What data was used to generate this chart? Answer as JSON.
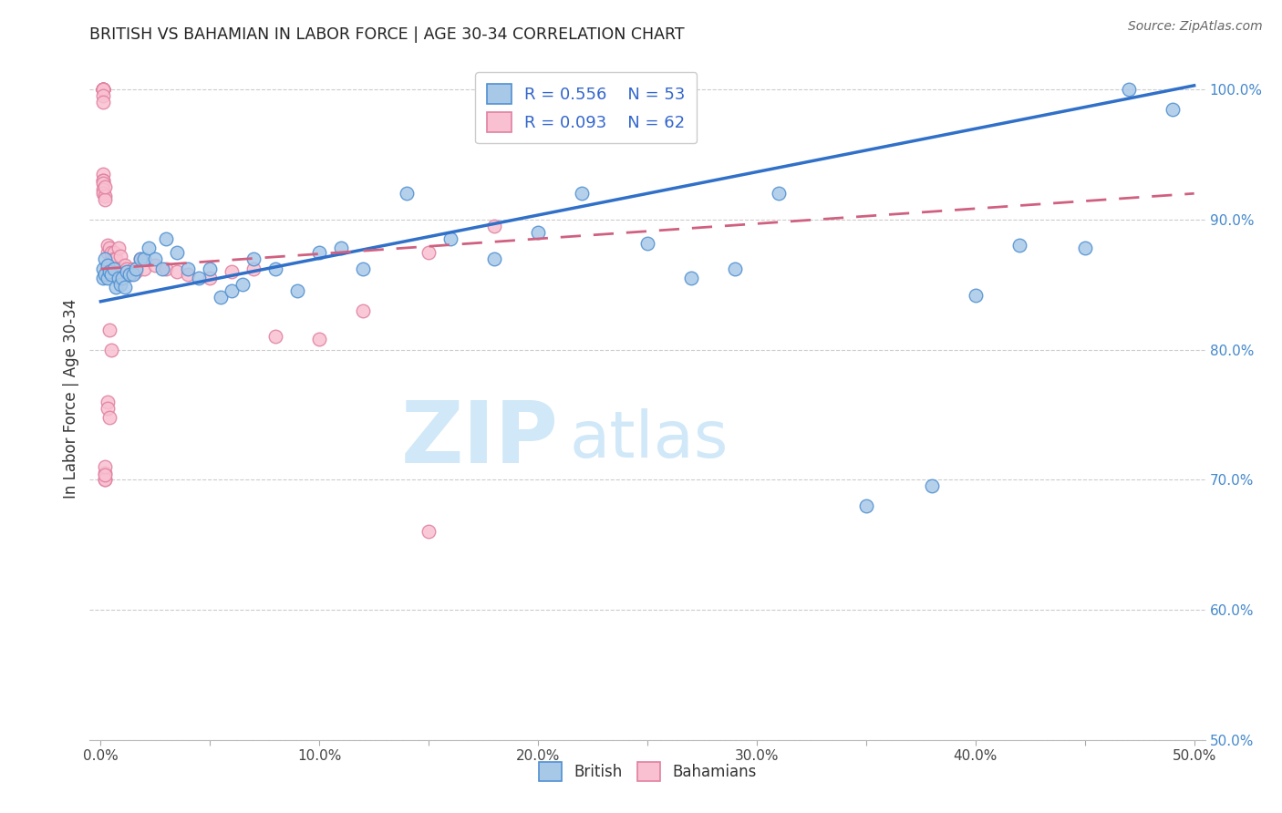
{
  "title": "BRITISH VS BAHAMIAN IN LABOR FORCE | AGE 30-34 CORRELATION CHART",
  "source": "Source: ZipAtlas.com",
  "ylabel": "In Labor Force | Age 30-34",
  "xlim": [
    -0.005,
    0.505
  ],
  "ylim": [
    0.5,
    1.025
  ],
  "xticks": [
    0.0,
    0.05,
    0.1,
    0.15,
    0.2,
    0.25,
    0.3,
    0.35,
    0.4,
    0.45,
    0.5
  ],
  "xticklabels": [
    "0.0%",
    "",
    "10.0%",
    "",
    "20.0%",
    "",
    "30.0%",
    "",
    "40.0%",
    "",
    "50.0%"
  ],
  "yticks": [
    0.5,
    0.6,
    0.7,
    0.8,
    0.9,
    1.0
  ],
  "yticklabels": [
    "50.0%",
    "60.0%",
    "70.0%",
    "80.0%",
    "90.0%",
    "100.0%"
  ],
  "british_R": 0.556,
  "british_N": 53,
  "bahamian_R": 0.093,
  "bahamian_N": 62,
  "british_color": "#a8c8e8",
  "british_edge_color": "#5090d0",
  "british_line_color": "#3070c8",
  "bahamian_color": "#f8c0d0",
  "bahamian_edge_color": "#e080a0",
  "bahamian_line_color": "#d06080",
  "watermark_zip": "ZIP",
  "watermark_atlas": "atlas",
  "watermark_color": "#d0e8f8",
  "british_x": [
    0.001,
    0.001,
    0.002,
    0.002,
    0.003,
    0.003,
    0.004,
    0.005,
    0.006,
    0.007,
    0.008,
    0.009,
    0.01,
    0.011,
    0.012,
    0.013,
    0.015,
    0.016,
    0.018,
    0.02,
    0.022,
    0.025,
    0.028,
    0.03,
    0.035,
    0.04,
    0.045,
    0.05,
    0.055,
    0.06,
    0.065,
    0.07,
    0.08,
    0.09,
    0.1,
    0.11,
    0.12,
    0.14,
    0.16,
    0.18,
    0.2,
    0.22,
    0.25,
    0.27,
    0.29,
    0.31,
    0.35,
    0.38,
    0.4,
    0.42,
    0.45,
    0.47,
    0.49
  ],
  "british_y": [
    0.855,
    0.862,
    0.87,
    0.858,
    0.865,
    0.855,
    0.86,
    0.858,
    0.862,
    0.848,
    0.855,
    0.85,
    0.855,
    0.848,
    0.86,
    0.858,
    0.858,
    0.862,
    0.87,
    0.87,
    0.878,
    0.87,
    0.862,
    0.885,
    0.875,
    0.862,
    0.855,
    0.862,
    0.84,
    0.845,
    0.85,
    0.87,
    0.862,
    0.845,
    0.875,
    0.878,
    0.862,
    0.92,
    0.885,
    0.87,
    0.89,
    0.92,
    0.882,
    0.855,
    0.862,
    0.92,
    0.68,
    0.695,
    0.842,
    0.88,
    0.878,
    1.0,
    0.985
  ],
  "british_trendline_x": [
    0.0,
    0.5
  ],
  "british_trendline_y": [
    0.837,
    1.003
  ],
  "bahamian_x": [
    0.001,
    0.001,
    0.001,
    0.001,
    0.001,
    0.001,
    0.001,
    0.001,
    0.001,
    0.001,
    0.001,
    0.001,
    0.001,
    0.001,
    0.001,
    0.002,
    0.002,
    0.002,
    0.003,
    0.003,
    0.003,
    0.004,
    0.004,
    0.005,
    0.005,
    0.006,
    0.006,
    0.007,
    0.007,
    0.008,
    0.009,
    0.01,
    0.011,
    0.012,
    0.013,
    0.015,
    0.016,
    0.018,
    0.02,
    0.025,
    0.03,
    0.035,
    0.04,
    0.05,
    0.06,
    0.07,
    0.08,
    0.1,
    0.12,
    0.15,
    0.18,
    0.002,
    0.002,
    0.002,
    0.002,
    0.002,
    0.003,
    0.003,
    0.004,
    0.004,
    0.005,
    0.15
  ],
  "bahamian_y": [
    1.0,
    1.0,
    1.0,
    1.0,
    1.0,
    1.0,
    1.0,
    0.995,
    0.99,
    0.935,
    0.93,
    0.93,
    0.928,
    0.923,
    0.92,
    0.918,
    0.915,
    0.925,
    0.875,
    0.88,
    0.86,
    0.865,
    0.878,
    0.87,
    0.875,
    0.875,
    0.87,
    0.87,
    0.862,
    0.878,
    0.872,
    0.858,
    0.865,
    0.862,
    0.858,
    0.862,
    0.86,
    0.87,
    0.862,
    0.865,
    0.862,
    0.86,
    0.858,
    0.855,
    0.86,
    0.862,
    0.81,
    0.808,
    0.83,
    0.875,
    0.895,
    0.705,
    0.7,
    0.7,
    0.71,
    0.704,
    0.76,
    0.755,
    0.748,
    0.815,
    0.8,
    0.66
  ],
  "bahamian_trendline_x": [
    0.0,
    0.5
  ],
  "bahamian_trendline_y": [
    0.862,
    0.92
  ]
}
